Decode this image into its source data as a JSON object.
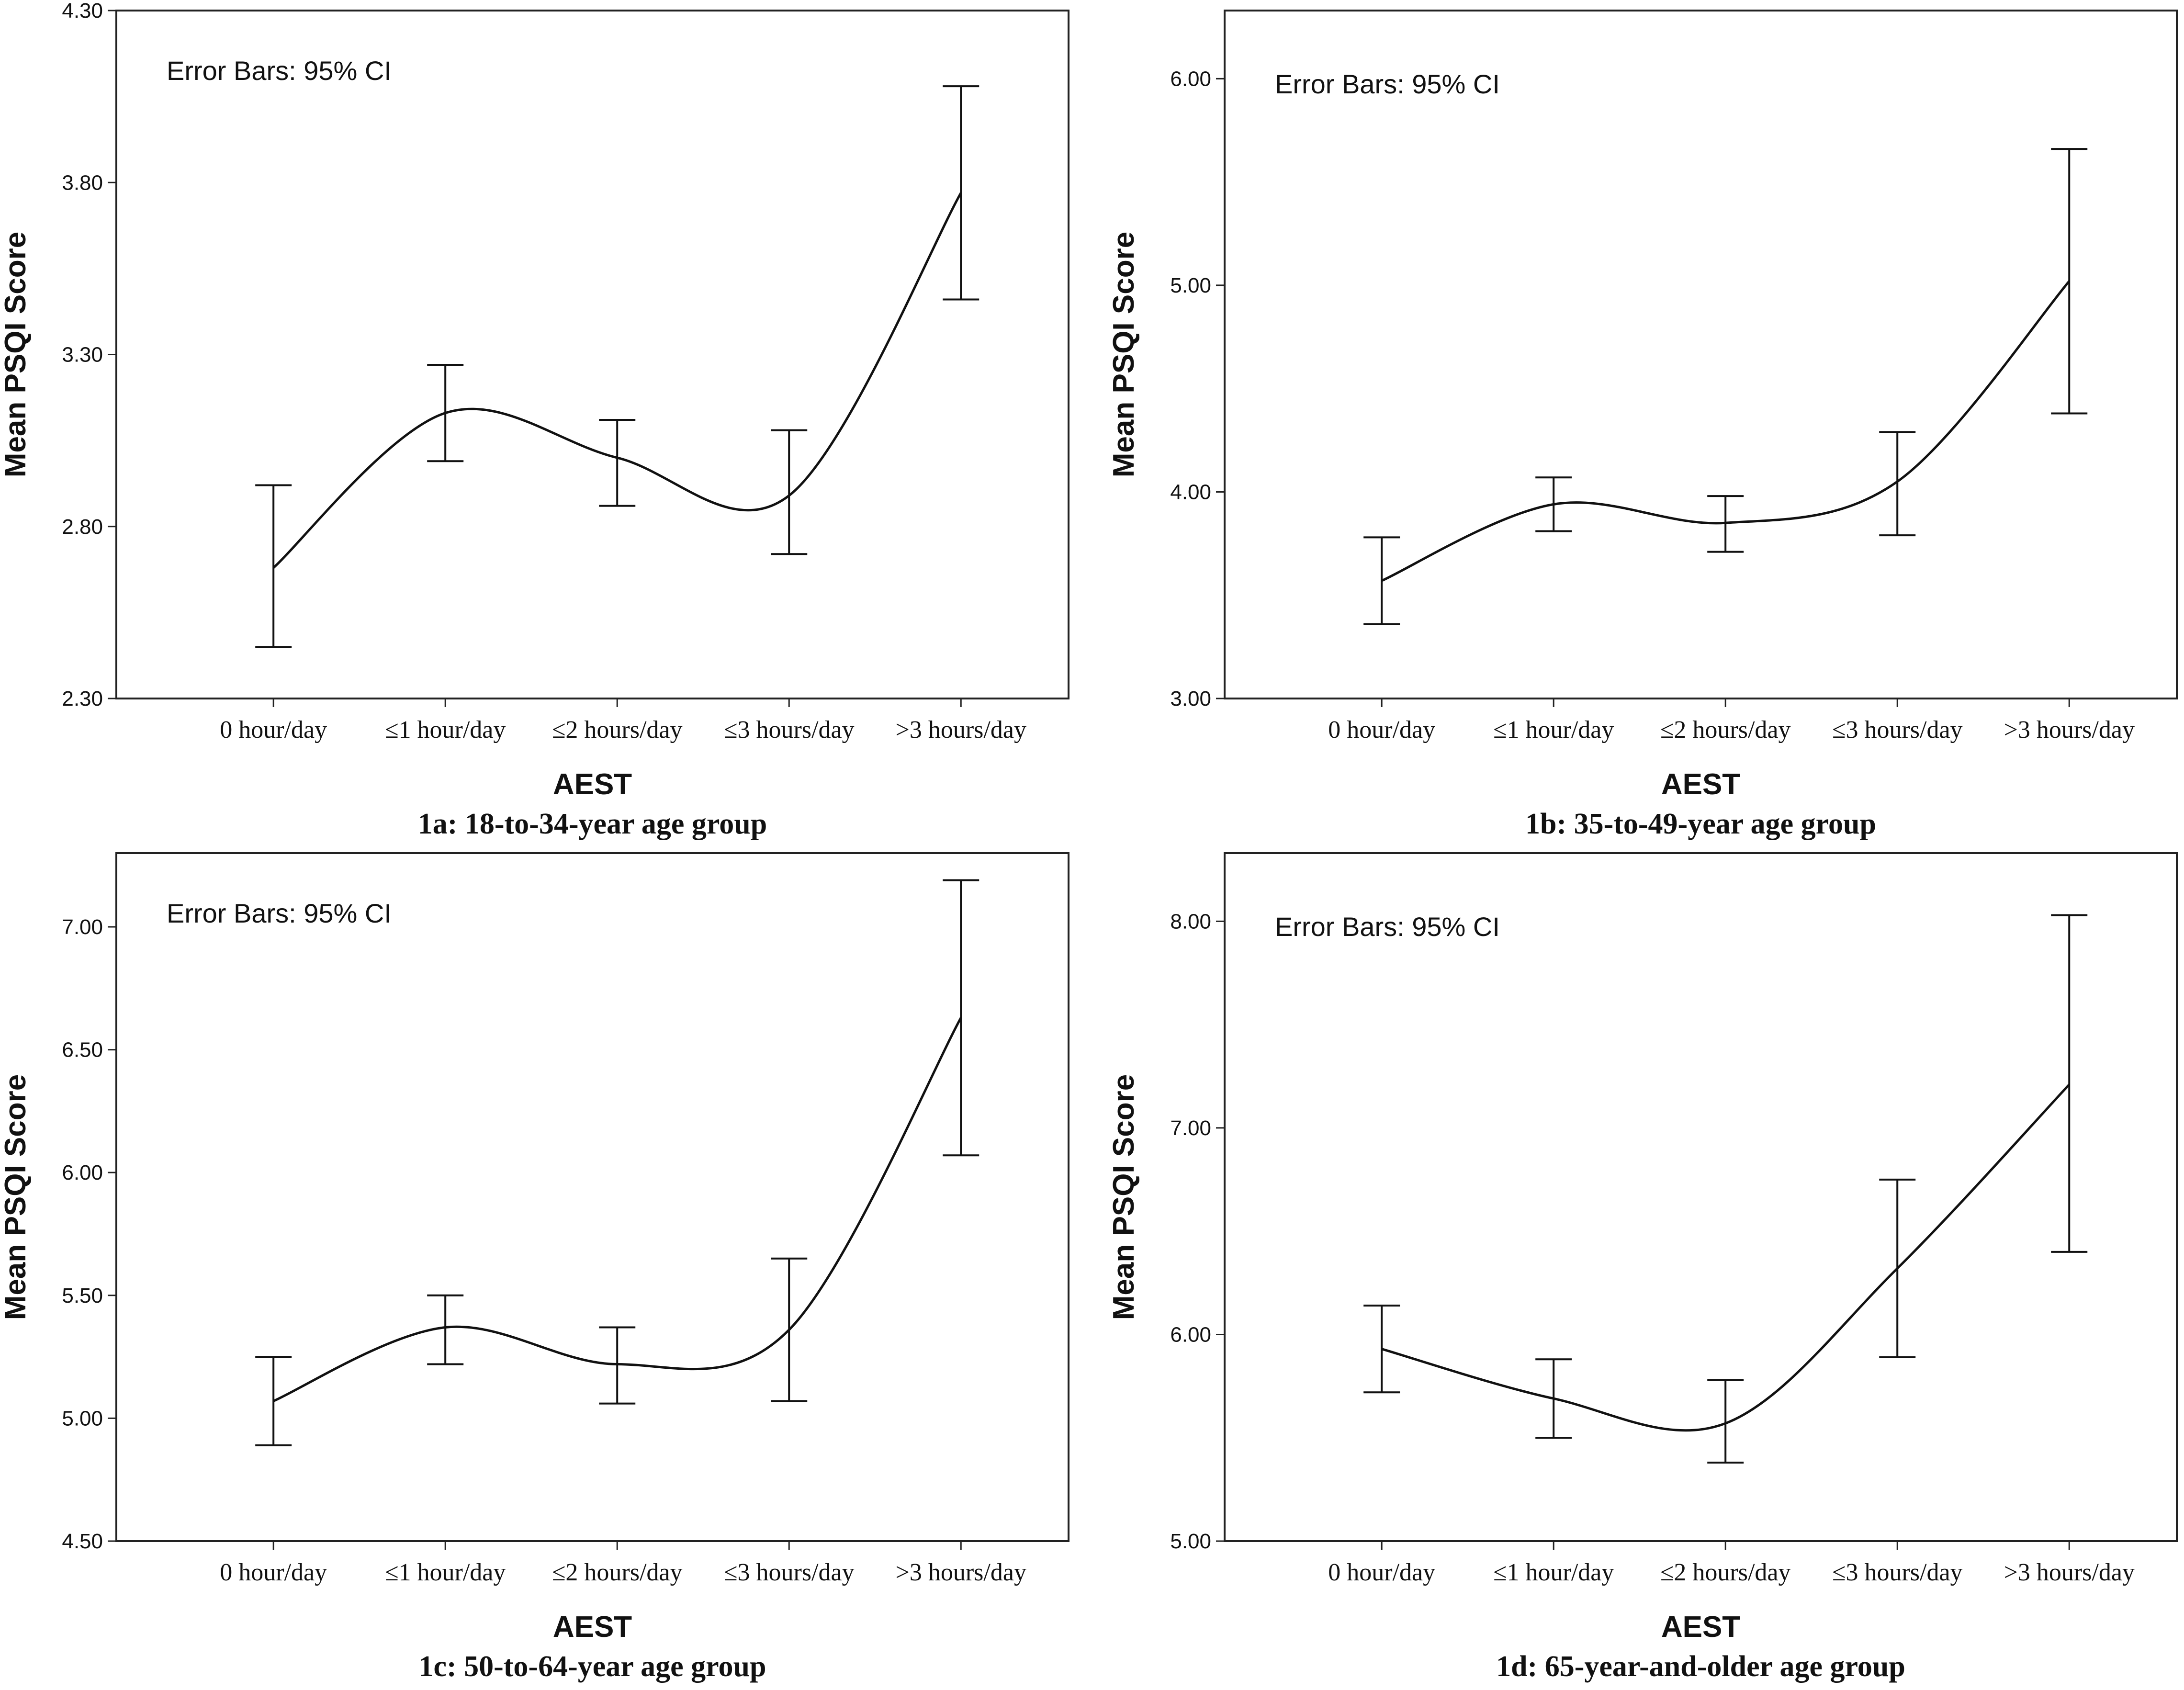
{
  "colors": {
    "line": "#111111",
    "frame": "#222222",
    "background": "#ffffff"
  },
  "chart_data": [
    {
      "type": "line",
      "panel": "1a",
      "caption": "1a: 18-to-34-year age group",
      "annotation": "Error Bars: 95% CI",
      "xlabel": "AEST",
      "ylabel": "Mean PSQI Score",
      "categories": [
        "0 hour/day",
        "≤1 hour/day",
        "≤2 hours/day",
        "≤3 hours/day",
        ">3 hours/day"
      ],
      "ylim": [
        2.3,
        4.3
      ],
      "yticks": [
        "2.30",
        "2.80",
        "3.30",
        "3.80",
        "4.30"
      ],
      "series": [
        {
          "name": "Mean PSQI Score",
          "values": [
            2.68,
            3.13,
            3.0,
            2.89,
            3.77
          ],
          "ci_lower": [
            2.45,
            2.99,
            2.86,
            2.72,
            3.46
          ],
          "ci_upper": [
            2.92,
            3.27,
            3.11,
            3.08,
            4.08
          ]
        }
      ]
    },
    {
      "type": "line",
      "panel": "1b",
      "caption": "1b: 35-to-49-year age group",
      "annotation": "Error Bars: 95% CI",
      "xlabel": "AEST",
      "ylabel": "Mean PSQI Score",
      "categories": [
        "0 hour/day",
        "≤1 hour/day",
        "≤2 hours/day",
        "≤3 hours/day",
        ">3 hours/day"
      ],
      "ylim": [
        3.0,
        6.33
      ],
      "yticks": [
        "3.00",
        "4.00",
        "5.00",
        "6.00"
      ],
      "series": [
        {
          "name": "Mean PSQI Score",
          "values": [
            3.57,
            3.94,
            3.85,
            4.05,
            5.02
          ],
          "ci_lower": [
            3.36,
            3.81,
            3.71,
            3.79,
            4.38
          ],
          "ci_upper": [
            3.78,
            4.07,
            3.98,
            4.29,
            5.66
          ]
        }
      ]
    },
    {
      "type": "line",
      "panel": "1c",
      "caption": "1c: 50-to-64-year age group",
      "annotation": "Error Bars: 95% CI",
      "xlabel": "AEST",
      "ylabel": "Mean PSQI Score",
      "categories": [
        "0 hour/day",
        "≤1 hour/day",
        "≤2 hours/day",
        "≤3 hours/day",
        ">3 hours/day"
      ],
      "ylim": [
        4.5,
        7.3
      ],
      "yticks": [
        "4.50",
        "5.00",
        "5.50",
        "6.00",
        "6.50",
        "7.00"
      ],
      "series": [
        {
          "name": "Mean PSQI Score",
          "values": [
            5.07,
            5.37,
            5.22,
            5.36,
            6.63
          ],
          "ci_lower": [
            4.89,
            5.22,
            5.06,
            5.07,
            6.07
          ],
          "ci_upper": [
            5.25,
            5.5,
            5.37,
            5.65,
            7.19
          ]
        }
      ]
    },
    {
      "type": "line",
      "panel": "1d",
      "caption": "1d: 65-year-and-older age group",
      "annotation": "Error Bars: 95% CI",
      "xlabel": "AEST",
      "ylabel": "Mean PSQI Score",
      "categories": [
        "0 hour/day",
        "≤1 hour/day",
        "≤2 hours/day",
        "≤3 hours/day",
        ">3 hours/day"
      ],
      "ylim": [
        5.0,
        8.33
      ],
      "yticks": [
        "5.00",
        "6.00",
        "7.00",
        "8.00"
      ],
      "series": [
        {
          "name": "Mean PSQI Score",
          "values": [
            5.93,
            5.69,
            5.57,
            6.32,
            7.21
          ],
          "ci_lower": [
            5.72,
            5.5,
            5.38,
            5.89,
            6.4
          ],
          "ci_upper": [
            6.14,
            5.88,
            5.78,
            6.75,
            8.03
          ]
        }
      ]
    }
  ]
}
